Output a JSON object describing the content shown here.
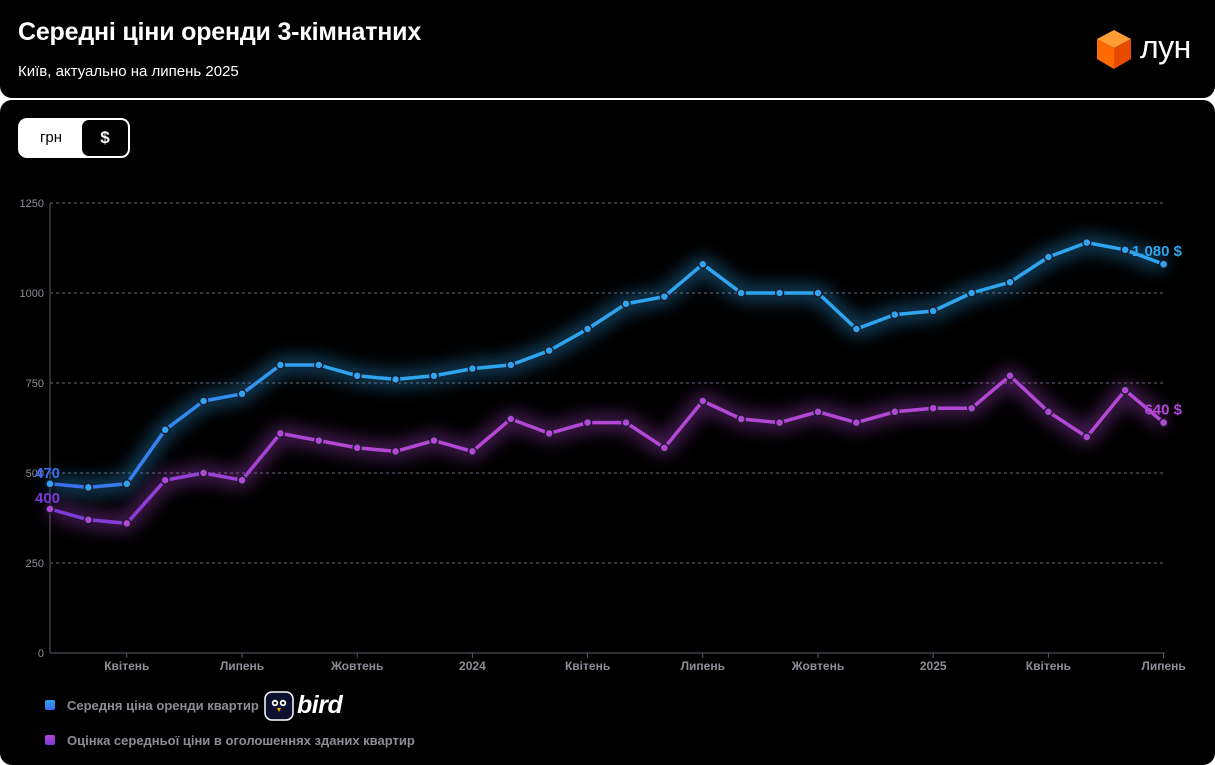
{
  "header": {
    "title": "Середні ціни оренди 3-кімнатних",
    "subtitle": "Київ, актуально на липень 2025",
    "brand": "лун",
    "brand_color": "#ff6a00"
  },
  "currency_toggle": {
    "options": [
      "грн",
      "$"
    ],
    "selected": "$"
  },
  "partner_logo": {
    "text": "bird"
  },
  "chart_data": {
    "type": "line",
    "y_ticks": [
      "0",
      "250",
      "500",
      "750",
      "1000",
      "1250"
    ],
    "ylim": [
      0,
      1250
    ],
    "x_tick_labels": [
      {
        "index": 2,
        "label": "Квітень"
      },
      {
        "index": 5,
        "label": "Липень"
      },
      {
        "index": 8,
        "label": "Жовтень"
      },
      {
        "index": 11,
        "label": "2024"
      },
      {
        "index": 14,
        "label": "Квітень"
      },
      {
        "index": 17,
        "label": "Липень"
      },
      {
        "index": 20,
        "label": "Жовтень"
      },
      {
        "index": 23,
        "label": "2025"
      },
      {
        "index": 26,
        "label": "Квітень"
      },
      {
        "index": 29,
        "label": "Липень"
      }
    ],
    "grid": true,
    "legend_position": "bottom-left",
    "series": [
      {
        "name": "Середня ціна оренди квартир",
        "color": "#2fa4ef",
        "color_start": "#3d6cf0",
        "values": [
          470,
          460,
          470,
          620,
          700,
          720,
          800,
          800,
          770,
          760,
          770,
          790,
          800,
          840,
          900,
          970,
          990,
          1080,
          1000,
          1000,
          1000,
          900,
          940,
          950,
          1000,
          1030,
          1100,
          1140,
          1120,
          1080
        ],
        "start_label": "470",
        "end_label": "1.080 $"
      },
      {
        "name": "Оцінка середньої ціни в оголошеннях зданих квартир",
        "color": "#b347d6",
        "color_start": "#7a3ad8",
        "values": [
          400,
          370,
          360,
          480,
          500,
          480,
          610,
          590,
          570,
          560,
          590,
          560,
          650,
          610,
          640,
          640,
          570,
          700,
          650,
          640,
          670,
          640,
          670,
          680,
          680,
          770,
          670,
          600,
          730,
          640
        ],
        "start_label": "400",
        "end_label": "640 $"
      }
    ]
  }
}
